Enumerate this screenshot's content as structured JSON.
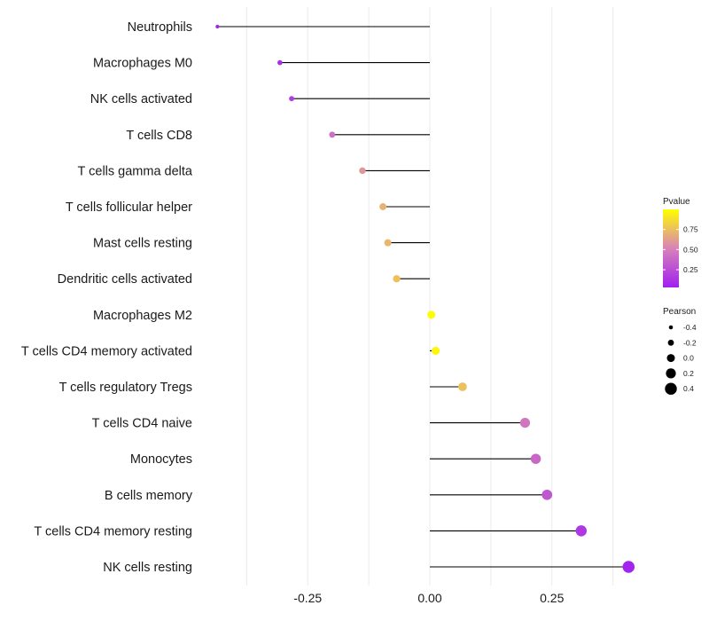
{
  "chart_data": {
    "type": "lollipop",
    "title": "",
    "xlabel": "",
    "ylabel": "",
    "xlim": [
      -0.44,
      0.42
    ],
    "x_ticks": [
      -0.25,
      0,
      0.25
    ],
    "x_tick_labels": [
      "-0.25",
      "0.00",
      "0.25"
    ],
    "categories": [
      "Neutrophils",
      "Macrophages M0",
      "NK cells activated",
      "T cells CD8",
      "T cells gamma delta",
      "T cells follicular helper",
      "Mast cells resting",
      "Dendritic cells activated",
      "Macrophages M2",
      "T cells CD4 memory activated",
      "T cells regulatory  Tregs ",
      "T cells CD4 naive",
      "Monocytes",
      "B cells memory",
      "T cells CD4 memory resting",
      "NK cells resting"
    ],
    "pearson": [
      -0.435,
      -0.307,
      -0.283,
      -0.2,
      -0.138,
      -0.096,
      -0.086,
      -0.068,
      0.003,
      0.012,
      0.067,
      0.195,
      0.217,
      0.24,
      0.31,
      0.407
    ],
    "pvalue": [
      0.05,
      0.1,
      0.18,
      0.42,
      0.6,
      0.7,
      0.72,
      0.76,
      0.99,
      0.97,
      0.76,
      0.45,
      0.38,
      0.3,
      0.15,
      0.05
    ],
    "color_legend": {
      "title": "Pvalue",
      "ticks": [
        0.25,
        0.5,
        0.75
      ],
      "tick_labels": [
        "0.25",
        "0.50",
        "0.75"
      ],
      "range": [
        0.03,
        1.0
      ],
      "low_color": "#a020f0",
      "mid_color": "#d882b8",
      "high_color": "#ffff00"
    },
    "size_legend": {
      "title": "Pearson",
      "values": [
        -0.4,
        -0.2,
        0.0,
        0.2,
        0.4
      ],
      "labels": [
        "-0.4",
        "-0.2",
        "0.0",
        "0.2",
        "0.4"
      ]
    }
  }
}
